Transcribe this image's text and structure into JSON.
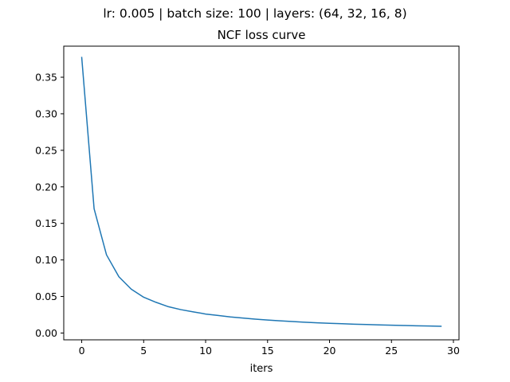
{
  "figure": {
    "suptitle": "lr: 0.005 | batch size: 100 | layers: (64, 32, 16, 8)"
  },
  "chart_data": {
    "type": "line",
    "title": "NCF loss curve",
    "xlabel": "iters",
    "ylabel": "",
    "xlim": [
      -1.45,
      30.45
    ],
    "ylim": [
      -0.0093,
      0.3925
    ],
    "xticks": [
      0,
      5,
      10,
      15,
      20,
      25,
      30
    ],
    "yticks": [
      0.0,
      0.05,
      0.1,
      0.15,
      0.2,
      0.25,
      0.3,
      0.35
    ],
    "grid": false,
    "series": [
      {
        "color": "#1f77b4",
        "x": [
          0,
          1,
          2,
          3,
          4,
          5,
          6,
          7,
          8,
          9,
          10,
          11,
          12,
          13,
          14,
          15,
          16,
          17,
          18,
          19,
          20,
          21,
          22,
          23,
          24,
          25,
          26,
          27,
          28,
          29
        ],
        "y": [
          0.377,
          0.17,
          0.107,
          0.077,
          0.06,
          0.049,
          0.042,
          0.036,
          0.032,
          0.029,
          0.026,
          0.024,
          0.022,
          0.0205,
          0.019,
          0.0178,
          0.0167,
          0.0157,
          0.0148,
          0.014,
          0.0133,
          0.0127,
          0.0121,
          0.0116,
          0.0111,
          0.0107,
          0.0103,
          0.0099,
          0.0096,
          0.0092
        ]
      }
    ]
  }
}
